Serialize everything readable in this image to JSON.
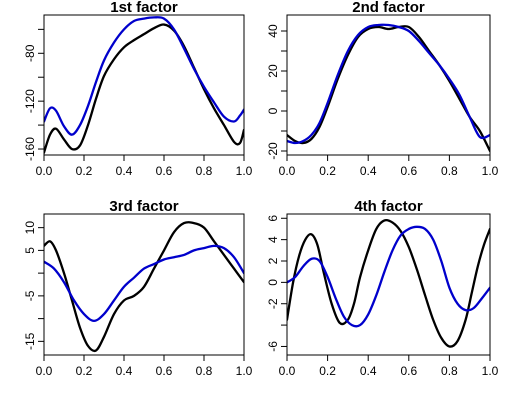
{
  "chart_data": [
    {
      "type": "line",
      "title": "1st factor",
      "xlabel": "",
      "ylabel": "",
      "xlim": [
        0.0,
        1.0
      ],
      "ylim": [
        -165,
        -48
      ],
      "grid": false,
      "x_ticks": [
        0.0,
        0.2,
        0.4,
        0.6,
        0.8,
        1.0
      ],
      "x_tick_labels": [
        "0.0",
        "0.2",
        "0.4",
        "0.6",
        "0.8",
        "1.0"
      ],
      "y_ticks": [
        -160,
        -120,
        -80
      ],
      "y_tick_labels": [
        "-160",
        "-120",
        "-80"
      ],
      "y_minor_ticks": [
        -140,
        -100,
        -60
      ],
      "series": [
        {
          "color": "#000000",
          "x": [
            0.0,
            0.03,
            0.06,
            0.1,
            0.14,
            0.18,
            0.22,
            0.26,
            0.3,
            0.35,
            0.4,
            0.45,
            0.5,
            0.55,
            0.6,
            0.65,
            0.7,
            0.75,
            0.8,
            0.85,
            0.9,
            0.95,
            0.98,
            1.0
          ],
          "y": [
            -163,
            -148,
            -143,
            -152,
            -160,
            -157,
            -140,
            -118,
            -99,
            -85,
            -75,
            -69,
            -64,
            -59,
            -56,
            -61,
            -74,
            -92,
            -110,
            -126,
            -140,
            -154,
            -155,
            -144
          ]
        },
        {
          "color": "#0000cc",
          "x": [
            0.0,
            0.03,
            0.06,
            0.1,
            0.14,
            0.18,
            0.22,
            0.26,
            0.3,
            0.35,
            0.4,
            0.45,
            0.5,
            0.55,
            0.6,
            0.65,
            0.7,
            0.75,
            0.8,
            0.85,
            0.9,
            0.95,
            0.98,
            1.0
          ],
          "y": [
            -137,
            -126,
            -128,
            -141,
            -148,
            -140,
            -124,
            -104,
            -86,
            -71,
            -60,
            -53,
            -51,
            -50,
            -51,
            -60,
            -76,
            -93,
            -108,
            -121,
            -133,
            -137,
            -132,
            -127
          ]
        }
      ]
    },
    {
      "type": "line",
      "title": "2nd factor",
      "xlabel": "",
      "ylabel": "",
      "xlim": [
        0.0,
        1.0
      ],
      "ylim": [
        -22,
        48
      ],
      "grid": false,
      "x_ticks": [
        0.0,
        0.2,
        0.4,
        0.6,
        0.8,
        1.0
      ],
      "x_tick_labels": [
        "0.0",
        "0.2",
        "0.4",
        "0.6",
        "0.8",
        "1.0"
      ],
      "y_ticks": [
        -20,
        0,
        20,
        40
      ],
      "y_tick_labels": [
        "-20",
        "0",
        "20",
        "40"
      ],
      "y_minor_ticks": [
        -10,
        10,
        30
      ],
      "series": [
        {
          "color": "#000000",
          "x": [
            0.0,
            0.04,
            0.08,
            0.12,
            0.16,
            0.2,
            0.25,
            0.3,
            0.35,
            0.4,
            0.45,
            0.5,
            0.55,
            0.6,
            0.65,
            0.7,
            0.75,
            0.8,
            0.85,
            0.9,
            0.95,
            1.0
          ],
          "y": [
            -12,
            -15,
            -16,
            -14,
            -8,
            2,
            16,
            28,
            37,
            41,
            42,
            41,
            42,
            42,
            37,
            30,
            23,
            15,
            6,
            -3,
            -10,
            -20
          ]
        },
        {
          "color": "#0000cc",
          "x": [
            0.0,
            0.04,
            0.08,
            0.12,
            0.16,
            0.2,
            0.25,
            0.3,
            0.35,
            0.4,
            0.45,
            0.5,
            0.55,
            0.6,
            0.65,
            0.7,
            0.75,
            0.8,
            0.85,
            0.9,
            0.95,
            1.0
          ],
          "y": [
            -15,
            -16,
            -15,
            -12,
            -6,
            4,
            18,
            30,
            38,
            42,
            43,
            43,
            42,
            40,
            35,
            29,
            23,
            16,
            8,
            -3,
            -13,
            -12
          ]
        }
      ]
    },
    {
      "type": "line",
      "title": "3rd factor",
      "xlabel": "",
      "ylabel": "",
      "xlim": [
        0.0,
        1.0
      ],
      "ylim": [
        -18,
        13
      ],
      "grid": false,
      "x_ticks": [
        0.0,
        0.2,
        0.4,
        0.6,
        0.8,
        1.0
      ],
      "x_tick_labels": [
        "0.0",
        "0.2",
        "0.4",
        "0.6",
        "0.8",
        "1.0"
      ],
      "y_ticks": [
        -15,
        -5,
        5,
        10
      ],
      "y_tick_labels": [
        "-15",
        "-5",
        "5",
        "10"
      ],
      "y_minor_ticks": [
        -10,
        0
      ],
      "series": [
        {
          "color": "#000000",
          "x": [
            0.0,
            0.03,
            0.06,
            0.1,
            0.14,
            0.18,
            0.22,
            0.26,
            0.3,
            0.35,
            0.4,
            0.45,
            0.5,
            0.55,
            0.6,
            0.65,
            0.7,
            0.75,
            0.8,
            0.85,
            0.9,
            0.95,
            1.0
          ],
          "y": [
            6,
            7,
            5,
            0,
            -6,
            -12,
            -16,
            -17,
            -14,
            -9,
            -6,
            -5,
            -3,
            1,
            5,
            9,
            11,
            11,
            10,
            7,
            4,
            1,
            -2
          ]
        },
        {
          "color": "#0000cc",
          "x": [
            0.0,
            0.05,
            0.1,
            0.15,
            0.2,
            0.25,
            0.3,
            0.35,
            0.4,
            0.45,
            0.5,
            0.55,
            0.6,
            0.65,
            0.7,
            0.75,
            0.8,
            0.85,
            0.9,
            0.95,
            1.0
          ],
          "y": [
            2.5,
            1,
            -2,
            -6,
            -9,
            -10.5,
            -9,
            -6,
            -3,
            -1,
            1,
            2,
            3,
            3.5,
            4,
            5,
            5.5,
            6,
            5.5,
            3.5,
            0
          ]
        }
      ]
    },
    {
      "type": "line",
      "title": "4th factor",
      "xlabel": "",
      "ylabel": "",
      "xlim": [
        0.0,
        1.0
      ],
      "ylim": [
        -6.8,
        6.4
      ],
      "grid": false,
      "x_ticks": [
        0.0,
        0.2,
        0.4,
        0.6,
        0.8,
        1.0
      ],
      "x_tick_labels": [
        "0.0",
        "0.2",
        "0.4",
        "0.6",
        "0.8",
        "1.0"
      ],
      "y_ticks": [
        -6,
        -2,
        0,
        2,
        4,
        6
      ],
      "y_tick_labels": [
        "-6",
        "-2",
        "0",
        "2",
        "4",
        "6"
      ],
      "y_minor_ticks": [
        -4
      ],
      "series": [
        {
          "color": "#000000",
          "x": [
            0.0,
            0.03,
            0.06,
            0.09,
            0.12,
            0.15,
            0.18,
            0.22,
            0.26,
            0.3,
            0.33,
            0.36,
            0.4,
            0.44,
            0.48,
            0.52,
            0.56,
            0.6,
            0.64,
            0.68,
            0.72,
            0.76,
            0.8,
            0.84,
            0.88,
            0.91,
            0.94,
            0.97,
            1.0
          ],
          "y": [
            -3.5,
            0,
            2.5,
            4,
            4.5,
            3.5,
            1,
            -2,
            -3.8,
            -3.5,
            -2,
            0.5,
            3,
            5,
            5.8,
            5.6,
            4.8,
            3.3,
            1.2,
            -1.2,
            -3.5,
            -5.2,
            -6,
            -5.5,
            -3.5,
            -1,
            1.5,
            3.5,
            5
          ]
        },
        {
          "color": "#0000cc",
          "x": [
            0.0,
            0.04,
            0.08,
            0.12,
            0.16,
            0.2,
            0.24,
            0.28,
            0.32,
            0.36,
            0.4,
            0.44,
            0.48,
            0.52,
            0.56,
            0.6,
            0.64,
            0.68,
            0.72,
            0.76,
            0.8,
            0.84,
            0.88,
            0.92,
            0.96,
            1.0
          ],
          "y": [
            0,
            0.5,
            1.5,
            2.2,
            2,
            0.5,
            -1.5,
            -3.2,
            -4,
            -4,
            -3,
            -1.2,
            1,
            3,
            4.4,
            5,
            5.2,
            5,
            4,
            2,
            -0.5,
            -2,
            -2.6,
            -2.4,
            -1.5,
            -0.5
          ]
        }
      ]
    }
  ]
}
